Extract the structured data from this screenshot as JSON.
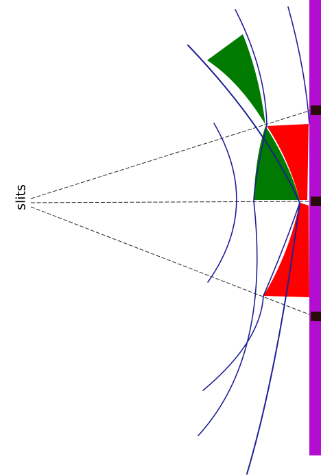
{
  "label": {
    "text": "slits"
  },
  "colors": {
    "wavefront": "#1f1f96",
    "region_a": "#007a00",
    "region_b": "#ff0000",
    "screen": "#b20dd0",
    "slit": "#2b0a0a",
    "ray": "#222222",
    "text": "#000000"
  }
}
